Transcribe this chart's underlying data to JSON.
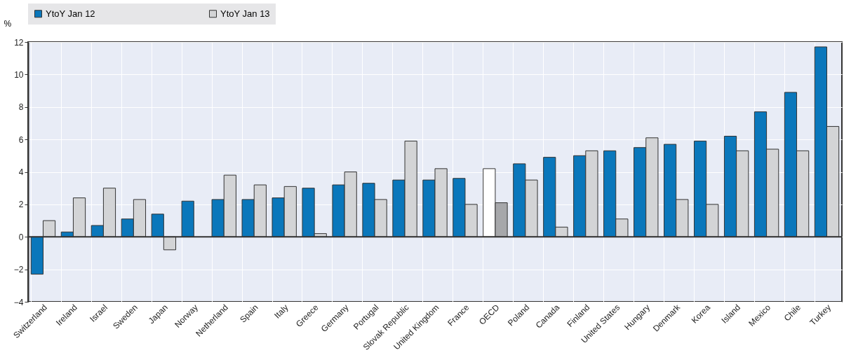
{
  "chart_data": {
    "type": "bar",
    "ylabel": "%",
    "categories": [
      "Switzerland",
      "Ireland",
      "Israel",
      "Sweden",
      "Japan",
      "Norway",
      "Netherland",
      "Spain",
      "Italy",
      "Greece",
      "Germany",
      "Portugal",
      "Slovak Republic",
      "United Kingdom",
      "France",
      "OECD",
      "Poland",
      "Canada",
      "Finland",
      "United States",
      "Hungary",
      "Denmark",
      "Korea",
      "Island",
      "Mexico",
      "Chile",
      "Turkey"
    ],
    "series": [
      {
        "name": "YtoY Jan 12",
        "color": "#0a77bb",
        "colors": [
          "#0a77bb",
          "#0a77bb",
          "#0a77bb",
          "#0a77bb",
          "#0a77bb",
          "#0a77bb",
          "#0a77bb",
          "#0a77bb",
          "#0a77bb",
          "#0a77bb",
          "#0a77bb",
          "#0a77bb",
          "#0a77bb",
          "#0a77bb",
          "#0a77bb",
          "#ffffff",
          "#0a77bb",
          "#0a77bb",
          "#0a77bb",
          "#0a77bb",
          "#0a77bb",
          "#0a77bb",
          "#0a77bb",
          "#0a77bb",
          "#0a77bb",
          "#0a77bb",
          "#0a77bb"
        ],
        "values": [
          -2.3,
          0.3,
          0.7,
          1.1,
          1.4,
          2.2,
          2.3,
          2.3,
          2.4,
          3.0,
          3.2,
          3.3,
          3.5,
          3.5,
          3.6,
          4.2,
          4.5,
          4.9,
          5.0,
          5.3,
          5.5,
          5.7,
          5.9,
          6.2,
          7.7,
          8.9,
          11.7
        ]
      },
      {
        "name": "YtoY Jan 13",
        "color": "#d3d4d6",
        "colors": [
          "#d3d4d6",
          "#d3d4d6",
          "#d3d4d6",
          "#d3d4d6",
          "#d3d4d6",
          "#d3d4d6",
          "#d3d4d6",
          "#d3d4d6",
          "#d3d4d6",
          "#d3d4d6",
          "#d3d4d6",
          "#d3d4d6",
          "#d3d4d6",
          "#d3d4d6",
          "#d3d4d6",
          "#a6a7aa",
          "#d3d4d6",
          "#d3d4d6",
          "#d3d4d6",
          "#d3d4d6",
          "#d3d4d6",
          "#d3d4d6",
          "#d3d4d6",
          "#d3d4d6",
          "#d3d4d6",
          "#d3d4d6",
          "#d3d4d6"
        ],
        "values": [
          1.0,
          2.4,
          3.0,
          2.3,
          -0.8,
          null,
          3.8,
          3.2,
          3.1,
          0.2,
          4.0,
          2.3,
          5.9,
          4.2,
          2.0,
          2.1,
          3.5,
          0.6,
          5.3,
          1.1,
          6.1,
          2.3,
          2.0,
          5.3,
          5.4,
          5.3,
          6.8
        ]
      }
    ],
    "ylim": [
      -4,
      12
    ],
    "yticks": [
      -4,
      -2,
      0,
      2,
      4,
      6,
      8,
      10,
      12
    ],
    "grid": true,
    "legend": "top"
  }
}
